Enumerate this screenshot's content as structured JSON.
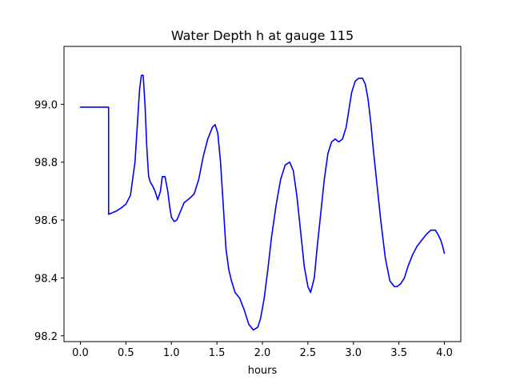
{
  "chart_data": {
    "type": "line",
    "title": "Water Depth h at gauge 115",
    "xlabel": "hours",
    "ylabel": "",
    "xlim": [
      -0.18,
      4.18
    ],
    "ylim": [
      98.18,
      99.2
    ],
    "xticks": [
      0.0,
      0.5,
      1.0,
      1.5,
      2.0,
      2.5,
      3.0,
      3.5,
      4.0
    ],
    "xtick_labels": [
      "0.0",
      "0.5",
      "1.0",
      "1.5",
      "2.0",
      "2.5",
      "3.0",
      "3.5",
      "4.0"
    ],
    "yticks": [
      98.2,
      98.4,
      98.6,
      98.8,
      99.0
    ],
    "ytick_labels": [
      "98.2",
      "98.4",
      "98.6",
      "98.8",
      "99.0"
    ],
    "grid": false,
    "series": [
      {
        "color": "#0000ff",
        "x": [
          0.0,
          0.1,
          0.2,
          0.3,
          0.31,
          0.31,
          0.35,
          0.4,
          0.45,
          0.5,
          0.55,
          0.6,
          0.63,
          0.65,
          0.67,
          0.69,
          0.71,
          0.73,
          0.75,
          0.77,
          0.79,
          0.82,
          0.85,
          0.88,
          0.9,
          0.93,
          0.96,
          0.98,
          1.0,
          1.03,
          1.06,
          1.1,
          1.14,
          1.2,
          1.25,
          1.3,
          1.35,
          1.4,
          1.45,
          1.48,
          1.51,
          1.54,
          1.57,
          1.6,
          1.63,
          1.66,
          1.7,
          1.75,
          1.8,
          1.85,
          1.9,
          1.95,
          1.98,
          2.02,
          2.06,
          2.1,
          2.15,
          2.2,
          2.25,
          2.3,
          2.34,
          2.38,
          2.42,
          2.46,
          2.5,
          2.53,
          2.57,
          2.6,
          2.64,
          2.68,
          2.72,
          2.76,
          2.8,
          2.84,
          2.88,
          2.92,
          2.95,
          2.98,
          3.02,
          3.06,
          3.1,
          3.13,
          3.16,
          3.19,
          3.22,
          3.26,
          3.3,
          3.35,
          3.4,
          3.45,
          3.48,
          3.52,
          3.56,
          3.6,
          3.65,
          3.7,
          3.75,
          3.8,
          3.85,
          3.9,
          3.93,
          3.96,
          3.98,
          4.0
        ],
        "y": [
          98.99,
          98.99,
          98.99,
          98.99,
          98.99,
          98.62,
          98.625,
          98.632,
          98.642,
          98.655,
          98.685,
          98.8,
          98.95,
          99.05,
          99.1,
          99.1,
          99.0,
          98.85,
          98.75,
          98.73,
          98.72,
          98.7,
          98.67,
          98.7,
          98.75,
          98.75,
          98.7,
          98.65,
          98.61,
          98.595,
          98.6,
          98.63,
          98.66,
          98.675,
          98.69,
          98.74,
          98.82,
          98.88,
          98.92,
          98.93,
          98.9,
          98.8,
          98.65,
          98.5,
          98.43,
          98.39,
          98.35,
          98.33,
          98.29,
          98.24,
          98.22,
          98.23,
          98.26,
          98.33,
          98.43,
          98.54,
          98.65,
          98.74,
          98.79,
          98.8,
          98.77,
          98.68,
          98.56,
          98.44,
          98.37,
          98.35,
          98.4,
          98.5,
          98.62,
          98.74,
          98.83,
          98.87,
          98.88,
          98.87,
          98.88,
          98.92,
          98.98,
          99.04,
          99.08,
          99.09,
          99.09,
          99.07,
          99.02,
          98.94,
          98.84,
          98.72,
          98.6,
          98.47,
          98.39,
          98.37,
          98.37,
          98.38,
          98.4,
          98.44,
          98.48,
          98.51,
          98.53,
          98.55,
          98.565,
          98.565,
          98.55,
          98.53,
          98.51,
          98.485
        ]
      }
    ]
  }
}
